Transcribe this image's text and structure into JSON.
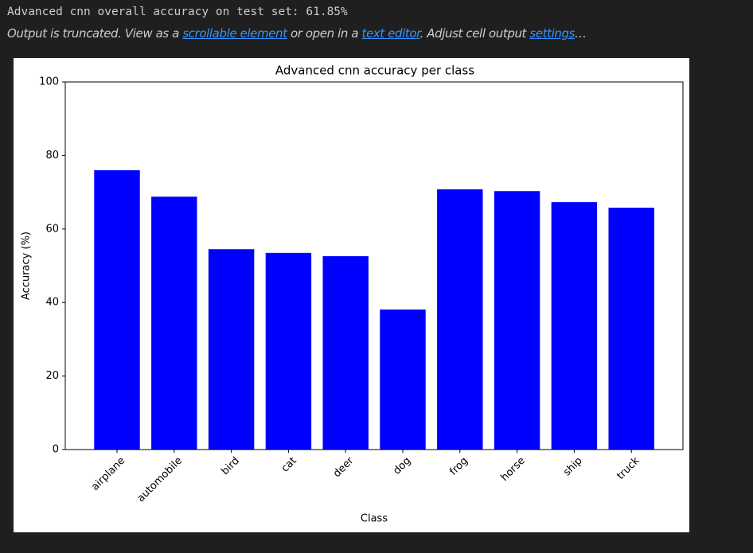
{
  "output": {
    "line": "Advanced cnn overall accuracy on test set: 61.85%",
    "notice": [
      {
        "text": "Output is truncated. View as a ",
        "link": false
      },
      {
        "text": "scrollable element",
        "link": true
      },
      {
        "text": " or open in a ",
        "link": false
      },
      {
        "text": "text editor",
        "link": true
      },
      {
        "text": ". Adjust cell output ",
        "link": false
      },
      {
        "text": "settings",
        "link": true
      },
      {
        "text": "…",
        "link": false
      }
    ]
  },
  "chart_data": {
    "type": "bar",
    "title": "Advanced cnn accuracy per class",
    "x_label": "Class",
    "y_label": "Accuracy (%)",
    "categories": [
      "airplane",
      "automobile",
      "bird",
      "cat",
      "deer",
      "dog",
      "frog",
      "horse",
      "ship",
      "truck"
    ],
    "values": [
      76.0,
      68.8,
      54.5,
      53.5,
      52.6,
      38.1,
      70.8,
      70.3,
      67.3,
      65.8
    ],
    "color": "#0000ff",
    "ylim": [
      0,
      100
    ],
    "yticks": [
      0,
      20,
      40,
      60,
      80,
      100
    ],
    "grid": false
  }
}
